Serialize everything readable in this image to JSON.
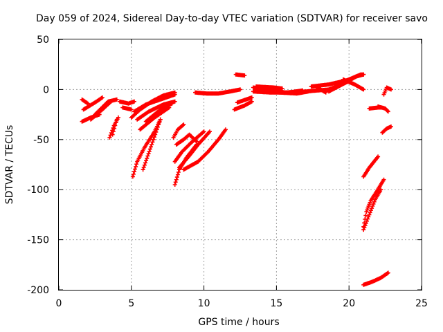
{
  "chart_data": {
    "type": "scatter",
    "title": "Day 059 of 2024, Sidereal Day-to-day VTEC variation (SDTVAR) for receiver savo",
    "xlabel": "GPS time / hours",
    "ylabel": "SDTVAR / TECUs",
    "xlim": [
      0,
      25
    ],
    "ylim": [
      -200,
      50
    ],
    "xticks": [
      0,
      5,
      10,
      15,
      20,
      25
    ],
    "yticks": [
      -200,
      -150,
      -100,
      -50,
      0,
      50
    ],
    "grid": true,
    "marker": "+",
    "color": "#ff0000",
    "segments": [
      {
        "x": [
          1.6,
          2.2,
          2.8
        ],
        "y": [
          -32,
          -28,
          -25
        ]
      },
      {
        "x": [
          1.6,
          2.0
        ],
        "y": [
          -10,
          -14
        ]
      },
      {
        "x": [
          1.7,
          2.6,
          3.0
        ],
        "y": [
          -20,
          -12,
          -8
        ]
      },
      {
        "x": [
          2.2,
          3.0,
          3.6
        ],
        "y": [
          -30,
          -20,
          -12
        ]
      },
      {
        "x": [
          2.5,
          3.4,
          4.0
        ],
        "y": [
          -25,
          -12,
          -10
        ]
      },
      {
        "x": [
          3.5,
          3.8,
          4.1
        ],
        "y": [
          -48,
          -36,
          -28
        ]
      },
      {
        "x": [
          3.7,
          4.0
        ],
        "y": [
          -45,
          -30
        ]
      },
      {
        "x": [
          4.2,
          4.8,
          5.2
        ],
        "y": [
          -12,
          -14,
          -12
        ]
      },
      {
        "x": [
          4.4,
          5.0
        ],
        "y": [
          -18,
          -20
        ]
      },
      {
        "x": [
          5.0,
          5.6,
          6.4,
          7.2,
          8.0
        ],
        "y": [
          -28,
          -20,
          -12,
          -6,
          -3
        ]
      },
      {
        "x": [
          5.2,
          6.0,
          7.0,
          8.0
        ],
        "y": [
          -22,
          -15,
          -10,
          -5
        ]
      },
      {
        "x": [
          5.4,
          6.2,
          7.2,
          8.0
        ],
        "y": [
          -30,
          -22,
          -15,
          -12
        ]
      },
      {
        "x": [
          5.6,
          6.6,
          7.6
        ],
        "y": [
          -40,
          -28,
          -18
        ]
      },
      {
        "x": [
          6.0,
          7.0,
          7.8
        ],
        "y": [
          -32,
          -20,
          -14
        ]
      },
      {
        "x": [
          5.1,
          5.4,
          5.9,
          6.6,
          7.0
        ],
        "y": [
          -87,
          -72,
          -58,
          -42,
          -30
        ]
      },
      {
        "x": [
          5.8,
          6.4,
          7.0
        ],
        "y": [
          -80,
          -55,
          -30
        ]
      },
      {
        "x": [
          7.9,
          8.2,
          8.6
        ],
        "y": [
          -48,
          -40,
          -35
        ]
      },
      {
        "x": [
          8.0,
          8.3,
          8.8,
          9.5
        ],
        "y": [
          -95,
          -80,
          -68,
          -55
        ]
      },
      {
        "x": [
          8.0,
          8.5,
          9.2,
          10.0
        ],
        "y": [
          -72,
          -62,
          -52,
          -42
        ]
      },
      {
        "x": [
          8.3,
          9.0,
          9.6,
          10.4
        ],
        "y": [
          -78,
          -66,
          -55,
          -42
        ]
      },
      {
        "x": [
          8.6,
          9.6,
          10.3,
          11.0,
          11.5
        ],
        "y": [
          -80,
          -72,
          -62,
          -50,
          -40
        ]
      },
      {
        "x": [
          8.1,
          8.6,
          9.0,
          9.5
        ],
        "y": [
          -55,
          -50,
          -45,
          -52
        ]
      },
      {
        "x": [
          9.4,
          10.2,
          11.0,
          11.8,
          12.5
        ],
        "y": [
          -3,
          -4,
          -4,
          -2,
          0
        ]
      },
      {
        "x": [
          12.2,
          12.8
        ],
        "y": [
          15,
          14
        ]
      },
      {
        "x": [
          12.1,
          12.8,
          13.3
        ],
        "y": [
          -20,
          -16,
          -12
        ]
      },
      {
        "x": [
          12.3,
          13.3
        ],
        "y": [
          -13,
          -8
        ]
      },
      {
        "x": [
          13.4,
          14.4,
          15.6,
          17.0,
          18.6,
          19.5,
          20.1
        ],
        "y": [
          2,
          0,
          -3,
          -2,
          0,
          5,
          9
        ]
      },
      {
        "x": [
          13.4,
          14.6,
          15.8,
          16.8
        ],
        "y": [
          -2,
          -3,
          -3,
          -1
        ]
      },
      {
        "x": [
          13.6,
          14.8,
          15.4
        ],
        "y": [
          3,
          2,
          1
        ]
      },
      {
        "x": [
          15.2,
          16.4,
          17.2
        ],
        "y": [
          -3,
          -4,
          -2
        ]
      },
      {
        "x": [
          17.4,
          18.6,
          19.8,
          20.2
        ],
        "y": [
          3,
          5,
          9,
          11
        ]
      },
      {
        "x": [
          17.8,
          18.4
        ],
        "y": [
          2,
          -3
        ]
      },
      {
        "x": [
          18.6,
          19.4,
          20.0,
          20.5,
          21.0
        ],
        "y": [
          -2,
          4,
          9,
          13,
          15
        ]
      },
      {
        "x": [
          19.6,
          20.4,
          21.0
        ],
        "y": [
          10,
          5,
          0
        ]
      },
      {
        "x": [
          20.0,
          20.8,
          21.0
        ],
        "y": [
          10,
          15,
          15
        ]
      },
      {
        "x": [
          21.4,
          22.0,
          22.2
        ],
        "y": [
          -19,
          -18,
          -18
        ]
      },
      {
        "x": [
          22.0,
          22.5,
          22.7
        ],
        "y": [
          -17,
          -19,
          -22
        ]
      },
      {
        "x": [
          22.4,
          22.6,
          22.9
        ],
        "y": [
          -5,
          2,
          0
        ]
      },
      {
        "x": [
          22.3,
          22.6,
          22.9
        ],
        "y": [
          -43,
          -39,
          -37
        ]
      },
      {
        "x": [
          21.0,
          21.4,
          22.0
        ],
        "y": [
          -87,
          -78,
          -67
        ]
      },
      {
        "x": [
          21.0,
          21.2,
          21.5,
          21.9,
          22.4
        ],
        "y": [
          -137,
          -122,
          -111,
          -102,
          -90
        ]
      },
      {
        "x": [
          21.0,
          21.4,
          21.8,
          22.2
        ],
        "y": [
          -140,
          -125,
          -110,
          -100
        ]
      },
      {
        "x": [
          21.0,
          21.6,
          22.2,
          22.7
        ],
        "y": [
          -195,
          -192,
          -188,
          -183
        ]
      }
    ]
  }
}
